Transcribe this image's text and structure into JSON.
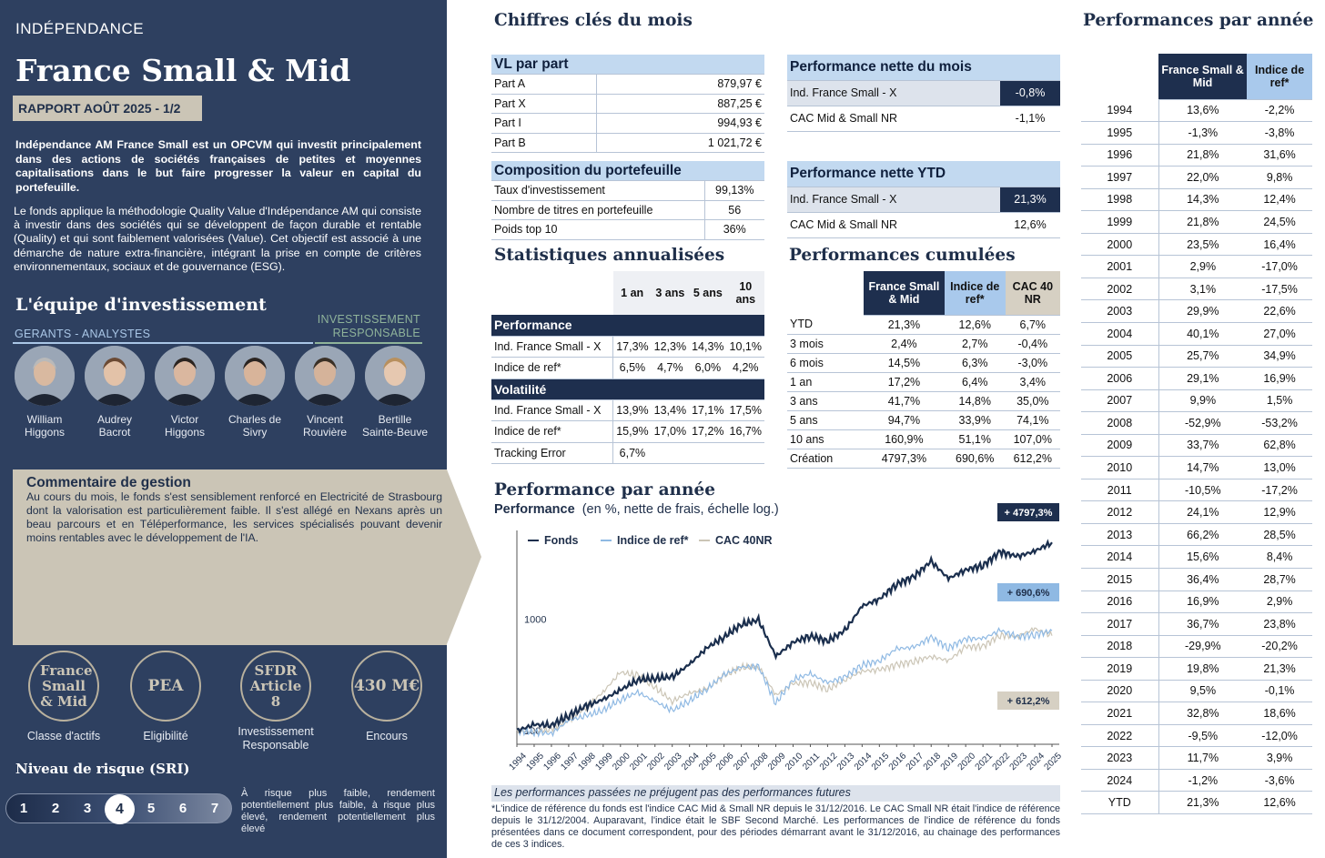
{
  "left": {
    "brand": "INDÉPENDANCE",
    "fund_title": "France Small & Mid",
    "report": "RAPPORT AOÛT 2025 - 1/2",
    "desc_bold": "Indépendance AM France Small est un OPCVM qui investit principalement dans des actions de sociétés françaises de petites et moyennes capitalisations dans le but faire progresser la valeur en capital du portefeuille.",
    "desc": "Le fonds applique la méthodologie Quality Value d'Indépendance AM qui consiste à investir dans des sociétés qui se développent de façon durable et rentable (Quality) et qui sont faiblement valorisées (Value). Cet objectif est associé à une démarche de nature extra-financière, intégrant la prise en compte de critères environnementaux, sociaux et de gouvernance (ESG).",
    "team_title": "L'équipe d'investissement",
    "gerants": "GERANTS - ANALYSTES",
    "ir": "INVESTISSEMENT RESPONSABLE",
    "members": [
      "William Higgons",
      "Audrey Bacrot",
      "Victor Higgons",
      "Charles de Sivry",
      "Vincent Rouvière",
      "Bertille Sainte-Beuve"
    ],
    "comment_title": "Commentaire de gestion",
    "comment": "Au cours du mois, le fonds s'est sensiblement renforcé en Electricité de Strasbourg dont la valorisation est particulièrement faible. Il s'est allégé en Nexans après un beau parcours et en Téléperformance, les services spécialisés pouvant devenir moins rentables avec le développement de l'IA.",
    "circles": [
      {
        "value": "France Small & Mid",
        "label": "Classe d'actifs"
      },
      {
        "value": "PEA",
        "label": "Eligibilité"
      },
      {
        "value": "SFDR Article 8",
        "label": "Investissement Responsable"
      },
      {
        "value": "430 M€",
        "label": "Encours"
      }
    ],
    "risk_title": "Niveau de risque (SRI)",
    "risk_levels": [
      "1",
      "2",
      "3",
      "4",
      "5",
      "6",
      "7"
    ],
    "risk_active": "4",
    "risk_note": "À risque plus faible, rendement potentiellement plus faible, à risque plus élevé, rendement potentiellement plus élevé"
  },
  "kpi": {
    "title": "Chiffres clés du mois",
    "vl_title": "VL par part",
    "vl": [
      [
        "Part A",
        "879,97 €"
      ],
      [
        "Part X",
        "887,25 €"
      ],
      [
        "Part I",
        "994,93 €"
      ],
      [
        "Part B",
        "1 021,72 €"
      ]
    ],
    "comp_title": "Composition du portefeuille",
    "comp": [
      [
        "Taux d'investissement",
        "99,13%"
      ],
      [
        "Nombre de titres en portefeuille",
        "56"
      ],
      [
        "Poids top 10",
        "36%"
      ]
    ],
    "pm_title": "Performance nette du mois",
    "pm": [
      [
        "Ind. France Small - X",
        "-0,8%"
      ],
      [
        "CAC Mid & Small NR",
        "-1,1%"
      ]
    ],
    "ytd_title": "Performance nette YTD",
    "ytd": [
      [
        "Ind. France Small - X",
        "21,3%"
      ],
      [
        "CAC Mid & Small NR",
        "12,6%"
      ]
    ]
  },
  "stats": {
    "title": "Statistiques annualisées",
    "headers": [
      "1 an",
      "3 ans",
      "5 ans",
      "10 ans"
    ],
    "perf_label": "Performance",
    "perf": [
      [
        "Ind. France Small - X",
        "17,3%",
        "12,3%",
        "14,3%",
        "10,1%"
      ],
      [
        "Indice de ref*",
        "6,5%",
        "4,7%",
        "6,0%",
        "4,2%"
      ]
    ],
    "vol_label": "Volatilité",
    "vol": [
      [
        "Ind. France Small - X",
        "13,9%",
        "13,4%",
        "17,1%",
        "17,5%"
      ],
      [
        "Indice de ref*",
        "15,9%",
        "17,0%",
        "17,2%",
        "16,7%"
      ],
      [
        "Tracking Error",
        "6,7%",
        "",
        "",
        ""
      ]
    ]
  },
  "cumul": {
    "title": "Performances cumulées",
    "headers": [
      "France Small & Mid",
      "Indice de ref*",
      "CAC 40 NR"
    ],
    "rows": [
      [
        "YTD",
        "21,3%",
        "12,6%",
        "6,7%"
      ],
      [
        "3 mois",
        "2,4%",
        "2,7%",
        "-0,4%"
      ],
      [
        "6 mois",
        "14,5%",
        "6,3%",
        "-3,0%"
      ],
      [
        "1 an",
        "17,2%",
        "6,4%",
        "3,4%"
      ],
      [
        "3 ans",
        "41,7%",
        "14,8%",
        "35,0%"
      ],
      [
        "5 ans",
        "94,7%",
        "33,9%",
        "74,1%"
      ],
      [
        "10 ans",
        "160,9%",
        "51,1%",
        "107,0%"
      ],
      [
        "Création",
        "4797,3%",
        "690,6%",
        "612,2%"
      ]
    ]
  },
  "annual": {
    "title": "Performances par année",
    "headers": [
      "France Small & Mid",
      "Indice de ref*"
    ],
    "rows": [
      [
        "1994",
        "13,6%",
        "-2,2%"
      ],
      [
        "1995",
        "-1,3%",
        "-3,8%"
      ],
      [
        "1996",
        "21,8%",
        "31,6%"
      ],
      [
        "1997",
        "22,0%",
        "9,8%"
      ],
      [
        "1998",
        "14,3%",
        "12,4%"
      ],
      [
        "1999",
        "21,8%",
        "24,5%"
      ],
      [
        "2000",
        "23,5%",
        "16,4%"
      ],
      [
        "2001",
        "2,9%",
        "-17,0%"
      ],
      [
        "2002",
        "3,1%",
        "-17,5%"
      ],
      [
        "2003",
        "29,9%",
        "22,6%"
      ],
      [
        "2004",
        "40,1%",
        "27,0%"
      ],
      [
        "2005",
        "25,7%",
        "34,9%"
      ],
      [
        "2006",
        "29,1%",
        "16,9%"
      ],
      [
        "2007",
        "9,9%",
        "1,5%"
      ],
      [
        "2008",
        "-52,9%",
        "-53,2%"
      ],
      [
        "2009",
        "33,7%",
        "62,8%"
      ],
      [
        "2010",
        "14,7%",
        "13,0%"
      ],
      [
        "2011",
        "-10,5%",
        "-17,2%"
      ],
      [
        "2012",
        "24,1%",
        "12,9%"
      ],
      [
        "2013",
        "66,2%",
        "28,5%"
      ],
      [
        "2014",
        "15,6%",
        "8,4%"
      ],
      [
        "2015",
        "36,4%",
        "28,7%"
      ],
      [
        "2016",
        "16,9%",
        "2,9%"
      ],
      [
        "2017",
        "36,7%",
        "23,8%"
      ],
      [
        "2018",
        "-29,9%",
        "-20,2%"
      ],
      [
        "2019",
        "19,8%",
        "21,3%"
      ],
      [
        "2020",
        "9,5%",
        "-0,1%"
      ],
      [
        "2021",
        "32,8%",
        "18,6%"
      ],
      [
        "2022",
        "-9,5%",
        "-12,0%"
      ],
      [
        "2023",
        "11,7%",
        "3,9%"
      ],
      [
        "2024",
        "-1,2%",
        "-3,6%"
      ],
      [
        "YTD",
        "21,3%",
        "12,6%"
      ]
    ]
  },
  "chart_data": {
    "type": "line",
    "title": "Performance par année",
    "subtitle_bold": "Performance",
    "subtitle": "(en %, nette de frais, échelle log.)",
    "scale": "log",
    "y_ticks": [
      "100",
      "1000"
    ],
    "x": [
      "1994",
      "1995",
      "1996",
      "1997",
      "1998",
      "1999",
      "2000",
      "2001",
      "2002",
      "2003",
      "2004",
      "2005",
      "2006",
      "2007",
      "2008",
      "2009",
      "2010",
      "2011",
      "2012",
      "2013",
      "2014",
      "2015",
      "2016",
      "2017",
      "2018",
      "2019",
      "2020",
      "2021",
      "2022",
      "2023",
      "2024",
      "2025"
    ],
    "series": [
      {
        "name": "Fonds",
        "color": "#1a2e4d",
        "values": [
          100,
          113.6,
          112.1,
          136.6,
          166.6,
          190.5,
          232.0,
          286.5,
          294.8,
          303.9,
          394.8,
          553.2,
          695.3,
          897.6,
          986.5,
          464.7,
          621.3,
          712.6,
          637.8,
          791.5,
          1315.4,
          1520.6,
          2074.1,
          2424.6,
          3314.9,
          2323.8,
          2784.0,
          3048.5,
          4047.7,
          3663.2,
          4091.8,
          4897.3
        ]
      },
      {
        "name": "Indice de ref*",
        "color": "#8fb9e3",
        "values": [
          100,
          97.8,
          94.1,
          123.8,
          135.9,
          152.8,
          190.2,
          221.4,
          183.8,
          151.6,
          185.9,
          236.1,
          318.5,
          372.3,
          377.9,
          176.8,
          287.8,
          325.3,
          269.3,
          304.0,
          390.6,
          423.5,
          545.0,
          560.8,
          694.3,
          554.0,
          672.0,
          671.3,
          796.2,
          700.7,
          728.0,
          790.6
        ]
      },
      {
        "name": "CAC 40NR",
        "color": "#cbc5b6",
        "values": [
          100,
          99,
          103,
          126,
          163,
          223,
          335,
          314,
          245,
          184,
          218,
          238,
          313,
          371,
          375,
          209,
          265,
          270,
          235,
          286,
          343,
          352,
          391,
          420,
          465,
          425,
          568,
          571,
          723,
          700,
          827,
          712.2
        ]
      }
    ],
    "end_labels": [
      "+ 4797,3%",
      "+ 690,6%",
      "+ 612,2%"
    ],
    "disclaimer": "Les performances passées ne préjugent pas des performances futures",
    "footnote": "*L'indice de référence du fonds est l'indice CAC Mid & Small NR depuis le 31/12/2016. Le CAC Small NR était l'indice de référence depuis le 31/12/2004. Auparavant, l'indice était le SBF Second Marché. Les performances de l'indice de référence du fonds présentées dans ce document correspondent, pour des périodes démarrant avant le 31/12/2016, au chainage des performances de ces 3 indices."
  }
}
